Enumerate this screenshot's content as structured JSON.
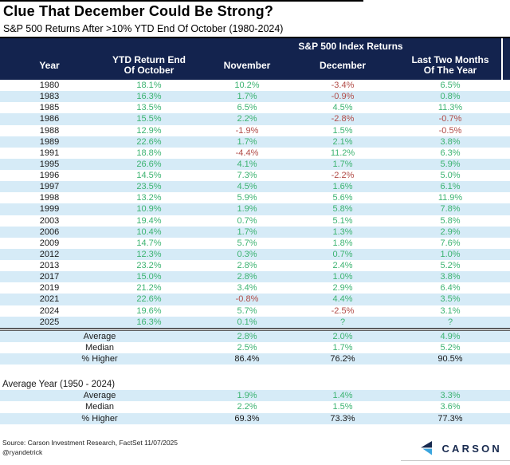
{
  "title": "Clue That December Could Be Strong?",
  "subtitle": "S&P 500 Returns After >10% YTD End Of October (1980-2024)",
  "colors": {
    "header_navy": "#13234E",
    "row_alt_blue": "#D6EBF7",
    "positive_green": "#3CB371",
    "negative_red": "#B14B47",
    "neutral_black": "#1a1a1a",
    "logo_navy": "#17294E",
    "logo_blue": "#3AA5DE"
  },
  "chart_data": {
    "type": "table",
    "title": "Clue That December Could Be Strong?",
    "subtitle": "S&P 500 Returns After >10% YTD End Of October (1980-2024)",
    "group_header": "S&P 500 Index Returns",
    "columns": [
      "Year",
      "YTD Return End Of October",
      "November",
      "December",
      "Last Two Months Of The Year"
    ],
    "columns_display": [
      "Year",
      "YTD Return End\nOf October",
      "November",
      "December",
      "Last Two Months\nOf The Year"
    ],
    "rows": [
      [
        "1980",
        "18.1%",
        "10.2%",
        "-3.4%",
        "6.5%"
      ],
      [
        "1983",
        "16.3%",
        "1.7%",
        "-0.9%",
        "0.8%"
      ],
      [
        "1985",
        "13.5%",
        "6.5%",
        "4.5%",
        "11.3%"
      ],
      [
        "1986",
        "15.5%",
        "2.2%",
        "-2.8%",
        "-0.7%"
      ],
      [
        "1988",
        "12.9%",
        "-1.9%",
        "1.5%",
        "-0.5%"
      ],
      [
        "1989",
        "22.6%",
        "1.7%",
        "2.1%",
        "3.8%"
      ],
      [
        "1991",
        "18.8%",
        "-4.4%",
        "11.2%",
        "6.3%"
      ],
      [
        "1995",
        "26.6%",
        "4.1%",
        "1.7%",
        "5.9%"
      ],
      [
        "1996",
        "14.5%",
        "7.3%",
        "-2.2%",
        "5.0%"
      ],
      [
        "1997",
        "23.5%",
        "4.5%",
        "1.6%",
        "6.1%"
      ],
      [
        "1998",
        "13.2%",
        "5.9%",
        "5.6%",
        "11.9%"
      ],
      [
        "1999",
        "10.9%",
        "1.9%",
        "5.8%",
        "7.8%"
      ],
      [
        "2003",
        "19.4%",
        "0.7%",
        "5.1%",
        "5.8%"
      ],
      [
        "2006",
        "10.4%",
        "1.7%",
        "1.3%",
        "2.9%"
      ],
      [
        "2009",
        "14.7%",
        "5.7%",
        "1.8%",
        "7.6%"
      ],
      [
        "2012",
        "12.3%",
        "0.3%",
        "0.7%",
        "1.0%"
      ],
      [
        "2013",
        "23.2%",
        "2.8%",
        "2.4%",
        "5.2%"
      ],
      [
        "2017",
        "15.0%",
        "2.8%",
        "1.0%",
        "3.8%"
      ],
      [
        "2019",
        "21.2%",
        "3.4%",
        "2.9%",
        "6.4%"
      ],
      [
        "2021",
        "22.6%",
        "-0.8%",
        "4.4%",
        "3.5%"
      ],
      [
        "2024",
        "19.6%",
        "5.7%",
        "-2.5%",
        "3.1%"
      ],
      [
        "2025",
        "16.3%",
        "0.1%",
        "?",
        "?"
      ]
    ],
    "summary_1980_2024": [
      {
        "label": "Average",
        "values": [
          "2.8%",
          "2.0%",
          "4.9%"
        ],
        "tone": "green"
      },
      {
        "label": "Median",
        "values": [
          "2.5%",
          "1.7%",
          "5.2%"
        ],
        "tone": "green"
      },
      {
        "label": "% Higher",
        "values": [
          "86.4%",
          "76.2%",
          "90.5%"
        ],
        "tone": "black"
      }
    ],
    "average_year_label": "Average Year (1950 - 2024)",
    "summary_1950_2024": [
      {
        "label": "Average",
        "values": [
          "1.9%",
          "1.4%",
          "3.3%"
        ],
        "tone": "green"
      },
      {
        "label": "Median",
        "values": [
          "2.2%",
          "1.5%",
          "3.6%"
        ],
        "tone": "green"
      },
      {
        "label": "% Higher",
        "values": [
          "69.3%",
          "73.3%",
          "77.3%"
        ],
        "tone": "black"
      }
    ]
  },
  "footer": {
    "source_line": "Source: Carson Investment Research, FactSet 11/07/2025",
    "handle": "@ryandetrick",
    "brand": "CARSON"
  }
}
